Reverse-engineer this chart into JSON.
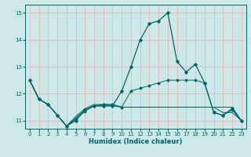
{
  "title": "",
  "xlabel": "Humidex (Indice chaleur)",
  "xlim": [
    -0.5,
    23.5
  ],
  "ylim": [
    10.7,
    15.3
  ],
  "yticks": [
    11,
    12,
    13,
    14,
    15
  ],
  "xticks": [
    0,
    1,
    2,
    3,
    4,
    5,
    6,
    7,
    8,
    9,
    10,
    11,
    12,
    13,
    14,
    15,
    16,
    17,
    18,
    19,
    20,
    21,
    22,
    23
  ],
  "bg_color": "#cce8e8",
  "grid_color": "#e8b8b8",
  "line_color": "#006666",
  "series": [
    [
      12.5,
      11.8,
      11.6,
      11.2,
      10.8,
      11.0,
      11.4,
      11.55,
      11.55,
      11.55,
      12.1,
      13.0,
      14.0,
      14.6,
      14.7,
      15.0,
      13.2,
      12.8,
      13.1,
      12.4,
      11.3,
      11.2,
      11.45,
      11.0
    ],
    [
      12.5,
      11.8,
      11.6,
      11.2,
      10.8,
      11.15,
      11.45,
      11.6,
      11.6,
      11.6,
      11.5,
      11.5,
      11.5,
      11.5,
      11.5,
      11.5,
      11.5,
      11.5,
      11.5,
      11.5,
      11.5,
      11.5,
      11.5,
      11.0
    ],
    [
      12.5,
      11.8,
      11.6,
      11.2,
      10.8,
      11.1,
      11.4,
      11.55,
      11.55,
      11.55,
      11.5,
      11.5,
      11.5,
      11.5,
      11.5,
      11.5,
      11.5,
      11.5,
      11.5,
      11.5,
      11.5,
      11.3,
      11.3,
      11.0
    ],
    [
      12.5,
      11.8,
      11.6,
      11.2,
      10.8,
      11.05,
      11.35,
      11.55,
      11.6,
      11.6,
      11.5,
      12.1,
      12.2,
      12.3,
      12.4,
      12.5,
      12.5,
      12.5,
      12.5,
      12.4,
      11.3,
      11.2,
      11.4,
      11.0
    ]
  ],
  "lw_main": 0.9,
  "lw_sub": 0.7,
  "markersize": 1.8,
  "tick_fontsize": 5.0,
  "xlabel_fontsize": 6.0
}
